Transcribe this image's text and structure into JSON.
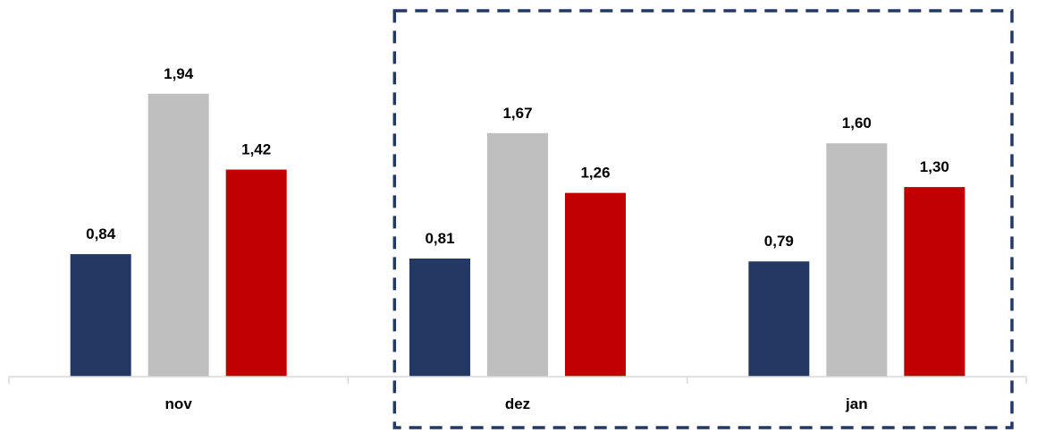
{
  "chart_data": {
    "type": "bar",
    "categories": [
      "nov",
      "dez",
      "jan"
    ],
    "series": [
      {
        "values": [
          0.84,
          0.81,
          0.79
        ],
        "labels": [
          "0,84",
          "0,81",
          "0,79"
        ],
        "color": "#233862"
      },
      {
        "values": [
          1.94,
          1.67,
          1.6
        ],
        "labels": [
          "1,94",
          "1,67",
          "1,60"
        ],
        "color": "#BFBFBF"
      },
      {
        "values": [
          1.42,
          1.26,
          1.3
        ],
        "labels": [
          "1,42",
          "1,26",
          "1,30"
        ],
        "color": "#C00000"
      }
    ],
    "ylim": [
      0,
      2.5
    ],
    "grid": false,
    "legend": "none",
    "highlight": {
      "categories": [
        "dez",
        "jan"
      ],
      "style": "dashed",
      "color": "#233862"
    }
  }
}
